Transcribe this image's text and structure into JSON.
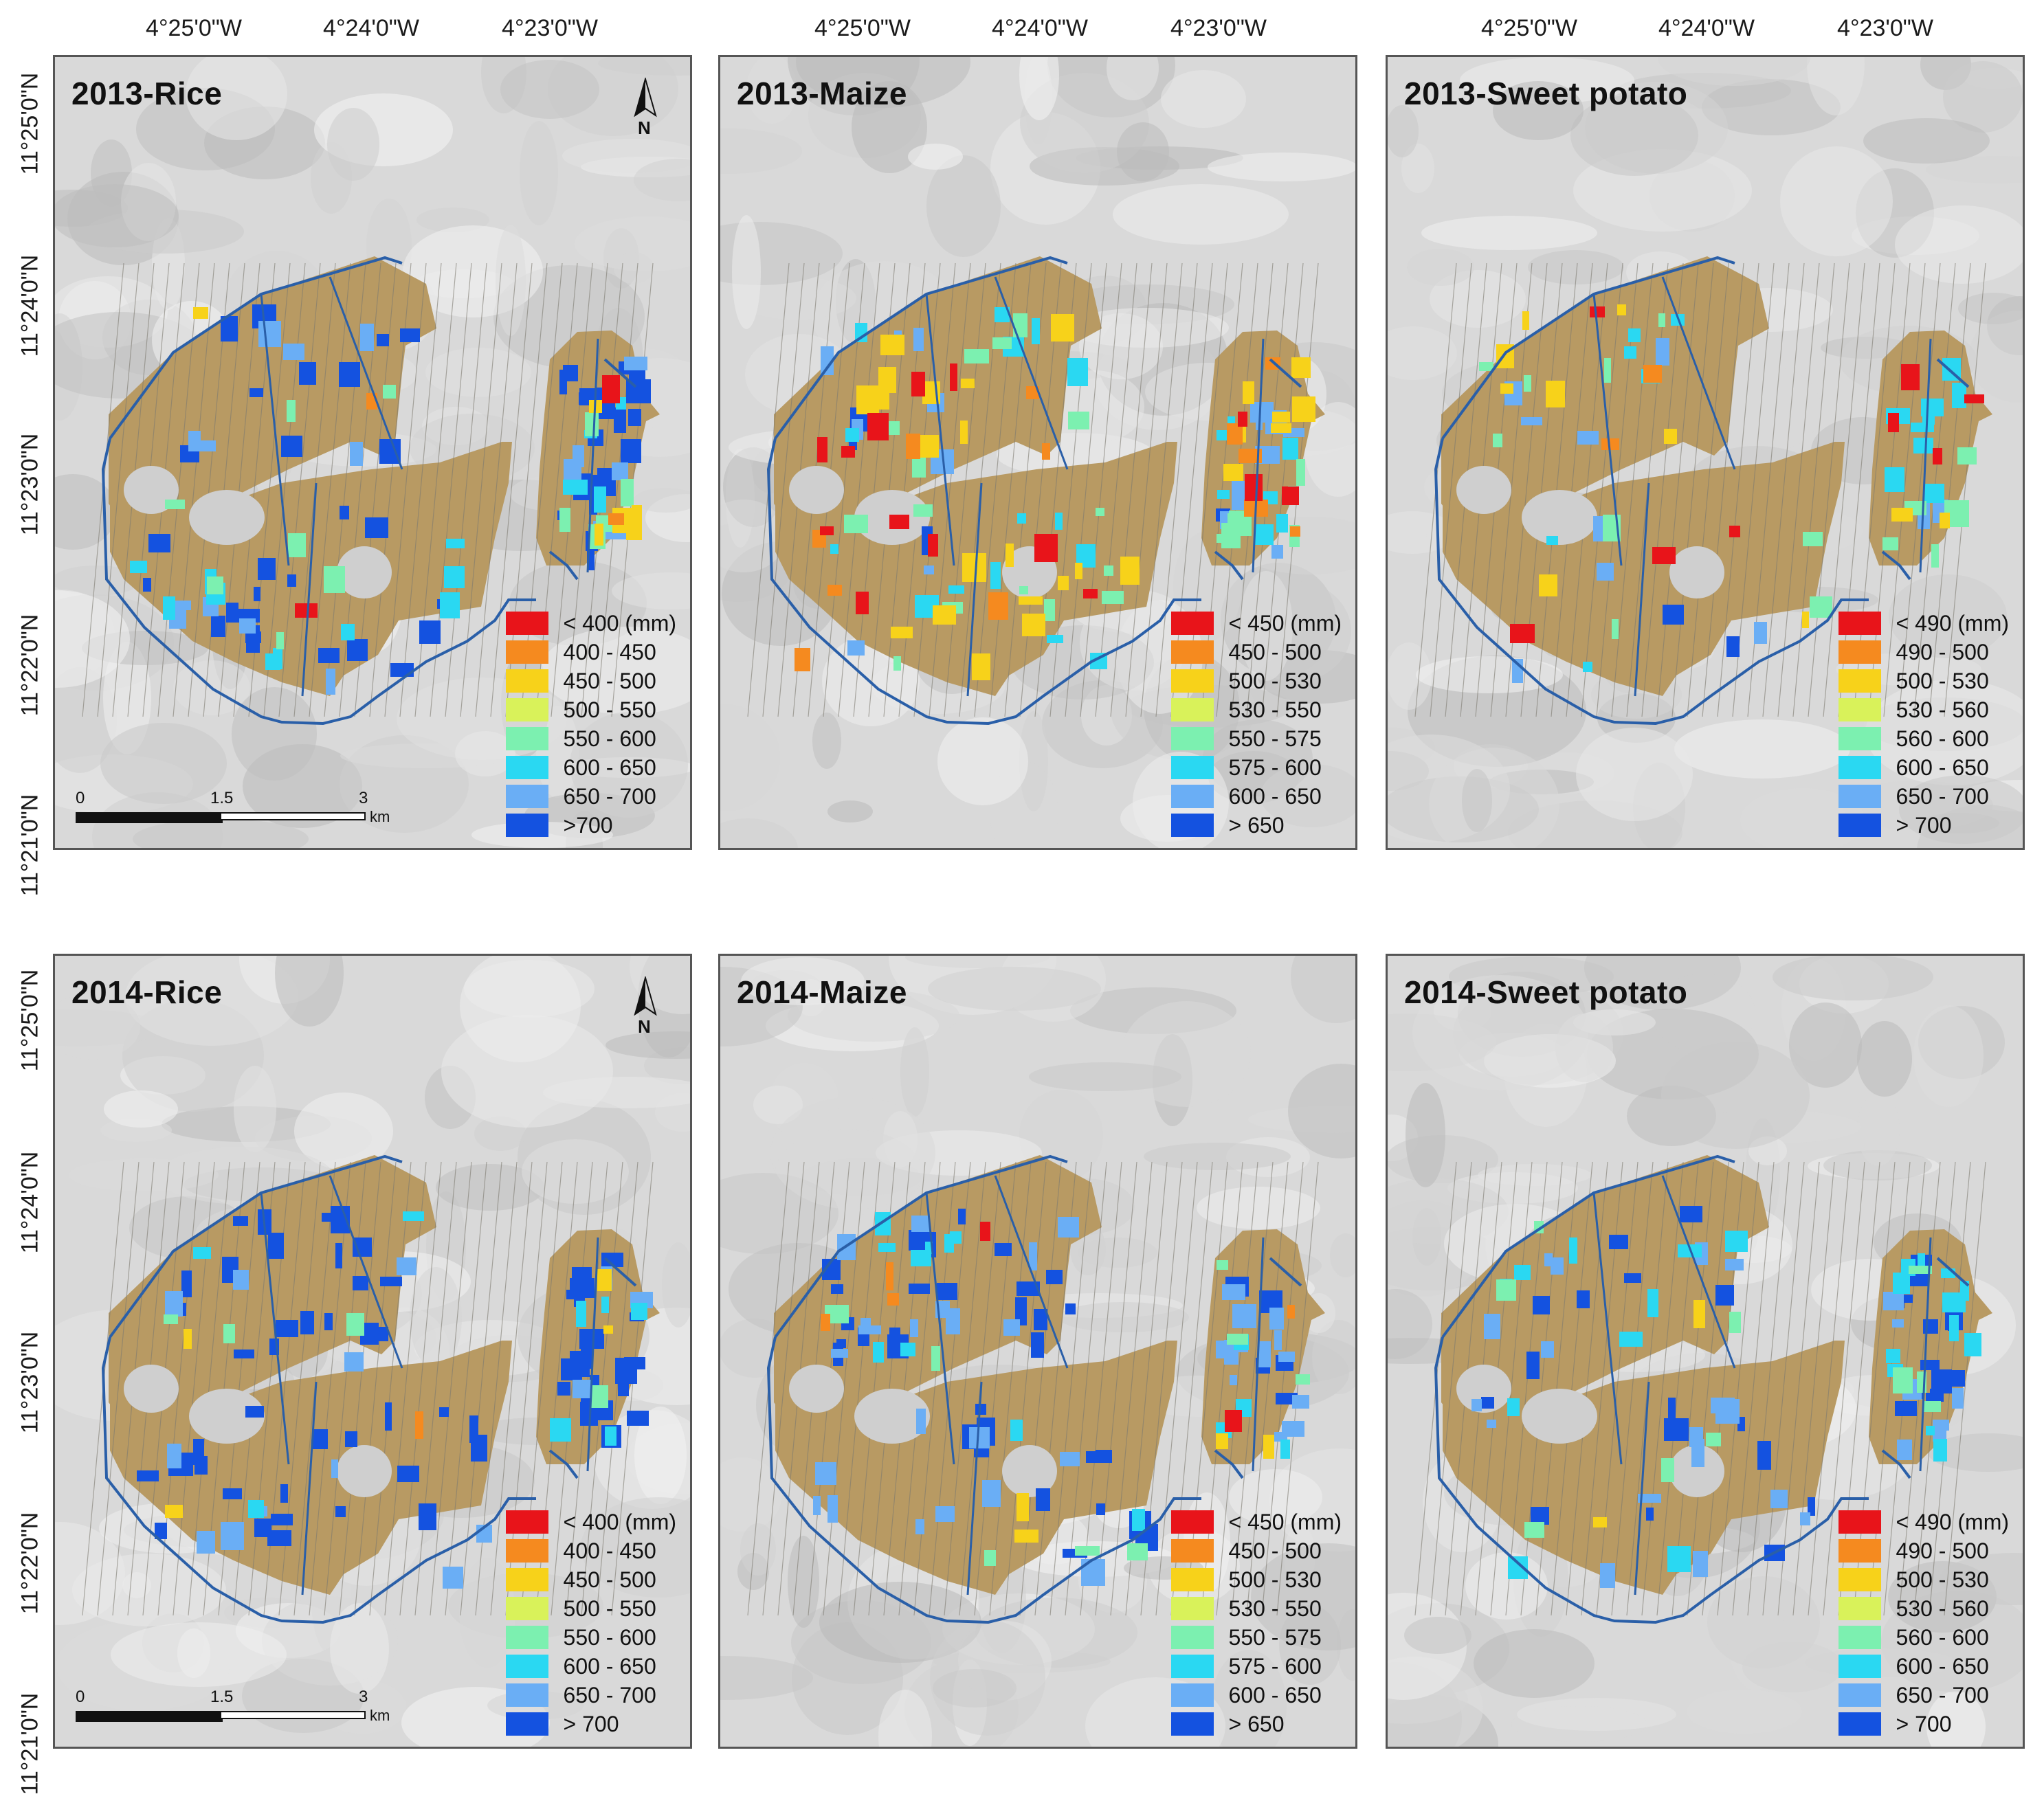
{
  "top_axis_labels": [
    [
      "4°25'0\"W",
      "4°24'0\"W",
      "4°23'0\"W"
    ],
    [
      "4°25'0\"W",
      "4°24'0\"W",
      "4°23'0\"W"
    ],
    [
      "4°25'0\"W",
      "4°24'0\"W",
      "4°23'0\"W"
    ]
  ],
  "left_axis_labels_row1": [
    "11°25'0\"N",
    "11°24'0\"N",
    "11°23'0\"N",
    "11°22'0\"N",
    "11°21'0\"N"
  ],
  "left_axis_labels_row2": [
    "11°25'0\"N",
    "11°24'0\"N",
    "11°23'0\"N",
    "11°22'0\"N",
    "11°21'0\"N"
  ],
  "colors": {
    "field": "#b89a63",
    "canal": "#2a5fa8",
    "legend": [
      "#e8141a",
      "#f58a1f",
      "#f7d21a",
      "#d9f25a",
      "#7cf0b0",
      "#2ad8f2",
      "#6aaef5",
      "#1452e0"
    ]
  },
  "north_label": "N",
  "scalebar": {
    "t0": "0",
    "t1": "1.5",
    "t2": "3",
    "unit": "km"
  },
  "panels": [
    {
      "title": "2013-Rice",
      "legend": [
        "< 400 (mm)",
        "400 - 450",
        "450 - 500",
        "500 - 550",
        "550 - 600",
        "600 - 650",
        "650 - 700",
        ">700"
      ],
      "has_north": true,
      "has_scale": true,
      "patches": {
        "blue": 48,
        "lightblue": 18,
        "cyan": 14,
        "green": 12,
        "yellow": 6,
        "orange": 2,
        "red": 2
      }
    },
    {
      "title": "2013-Maize",
      "legend": [
        "< 450 (mm)",
        "450 - 500",
        "500 - 530",
        "530 - 550",
        "550 - 575",
        "575 - 600",
        "600 - 650",
        "> 650"
      ],
      "has_north": false,
      "has_scale": false,
      "patches": {
        "blue": 4,
        "lightblue": 16,
        "cyan": 22,
        "green": 22,
        "yellow": 26,
        "orange": 12,
        "red": 14
      }
    },
    {
      "title": "2013-Sweet potato",
      "legend": [
        "< 490 (mm)",
        "490 - 500",
        "500 - 530",
        "530 - 560",
        "560 - 600",
        "600 - 650",
        "650 - 700",
        "> 700"
      ],
      "has_north": false,
      "has_scale": false,
      "patches": {
        "blue": 2,
        "lightblue": 10,
        "cyan": 16,
        "green": 14,
        "yellow": 10,
        "orange": 2,
        "red": 8
      }
    },
    {
      "title": "2014-Rice",
      "legend": [
        "< 400 (mm)",
        "400 - 450",
        "450 - 500",
        "500 - 550",
        "550 - 600",
        "600 - 650",
        "650 - 700",
        "> 700"
      ],
      "has_north": true,
      "has_scale": true,
      "patches": {
        "blue": 60,
        "lightblue": 14,
        "cyan": 8,
        "green": 4,
        "yellow": 4,
        "orange": 1,
        "red": 0
      }
    },
    {
      "title": "2014-Maize",
      "legend": [
        "< 450 (mm)",
        "450 - 500",
        "500 - 530",
        "530 - 550",
        "550 - 575",
        "575 - 600",
        "600 - 650",
        "> 650"
      ],
      "has_north": false,
      "has_scale": false,
      "patches": {
        "blue": 36,
        "lightblue": 34,
        "cyan": 14,
        "green": 8,
        "yellow": 4,
        "orange": 4,
        "red": 2
      }
    },
    {
      "title": "2014-Sweet potato",
      "legend": [
        " < 490 (mm)",
        "490 - 500",
        "500 - 530",
        "530 - 560",
        "560 - 600",
        "600 - 650",
        "650 - 700",
        "> 700"
      ],
      "has_north": false,
      "has_scale": false,
      "patches": {
        "blue": 30,
        "lightblue": 24,
        "cyan": 22,
        "green": 10,
        "yellow": 2,
        "orange": 0,
        "red": 0
      }
    }
  ]
}
